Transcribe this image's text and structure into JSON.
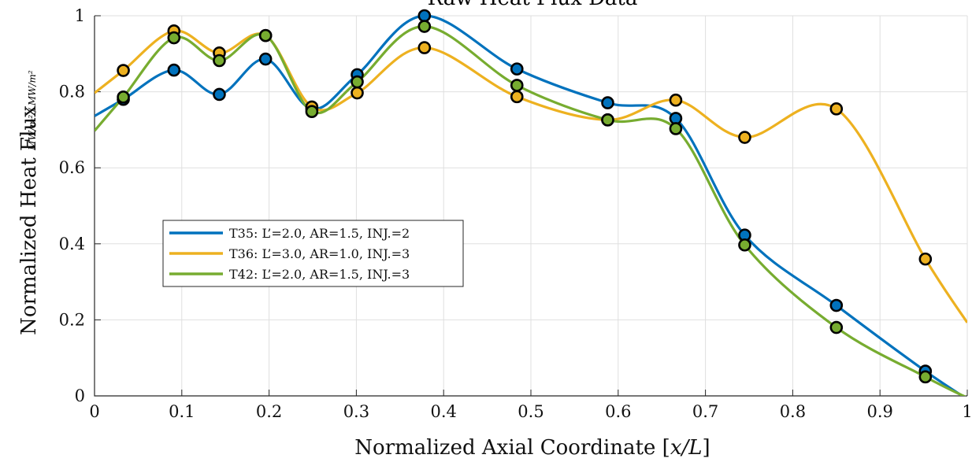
{
  "chart_data": {
    "type": "line",
    "title": "Raw Heat Flux Data",
    "xlabel_prefix": "Normalized Axial Coordinate [",
    "xlabel_var": "x/L",
    "xlabel_suffix": "]",
    "ylabel_prefix": "Normalized Heat Flux",
    "ylabel_fraction": "MW/m² / MW/m²",
    "xlim": [
      0,
      1
    ],
    "ylim": [
      0,
      1
    ],
    "xticks": [
      "0",
      "0.1",
      "0.2",
      "0.3",
      "0.4",
      "0.5",
      "0.6",
      "0.7",
      "0.8",
      "0.9",
      "1"
    ],
    "yticks": [
      "0",
      "0.2",
      "0.4",
      "0.6",
      "0.8",
      "1"
    ],
    "grid": true,
    "legend_position": "middle-left",
    "series": [
      {
        "name": "T35: L’=2.0, AR=1.5, INJ.=2",
        "color": "#0072bd",
        "x": [
          0.033,
          0.091,
          0.143,
          0.196,
          0.249,
          0.301,
          0.378,
          0.484,
          0.588,
          0.666,
          0.745,
          0.85,
          0.952
        ],
        "values": [
          0.78,
          0.857,
          0.793,
          0.886,
          0.755,
          0.845,
          1.0,
          0.86,
          0.771,
          0.73,
          0.423,
          0.238,
          0.065
        ]
      },
      {
        "name": "T36: L’=3.0, AR=1.0, INJ.=3",
        "color": "#edb120",
        "x": [
          0.033,
          0.091,
          0.143,
          0.196,
          0.249,
          0.301,
          0.378,
          0.484,
          0.588,
          0.666,
          0.745,
          0.85,
          0.952
        ],
        "values": [
          0.856,
          0.96,
          0.902,
          0.948,
          0.76,
          0.797,
          0.916,
          0.787,
          0.726,
          0.778,
          0.68,
          0.755,
          0.36
        ]
      },
      {
        "name": "T42: L’=2.0, AR=1.5, INJ.=3",
        "color": "#77ac30",
        "x": [
          0.033,
          0.091,
          0.143,
          0.196,
          0.249,
          0.301,
          0.378,
          0.484,
          0.588,
          0.666,
          0.745,
          0.85,
          0.952
        ],
        "values": [
          0.786,
          0.942,
          0.882,
          0.948,
          0.748,
          0.826,
          0.972,
          0.817,
          0.726,
          0.703,
          0.397,
          0.18,
          0.05
        ]
      }
    ]
  }
}
